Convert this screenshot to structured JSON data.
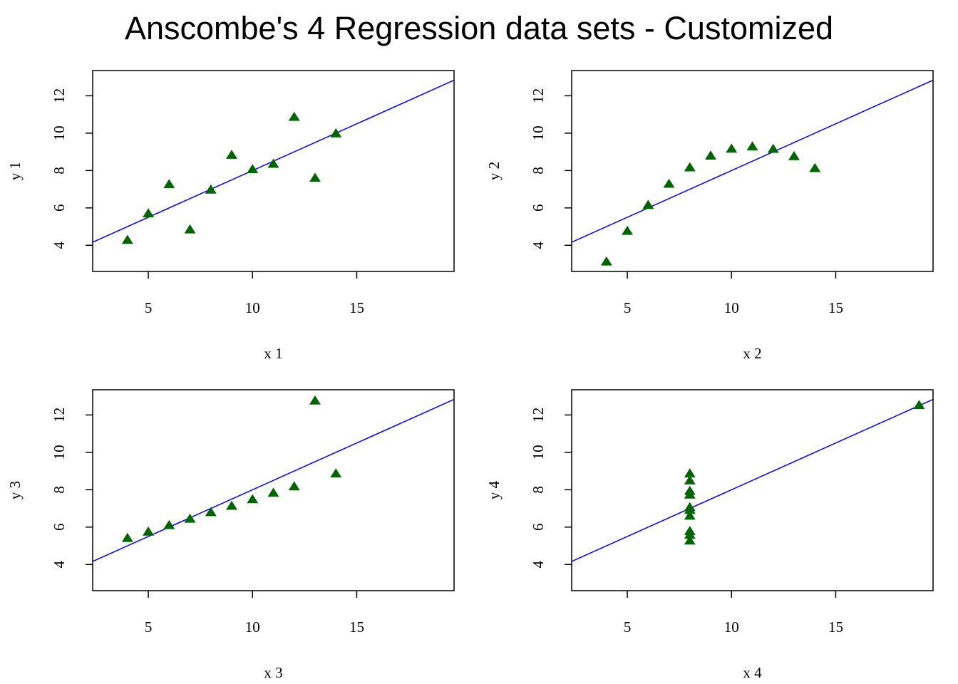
{
  "title": "Anscombe's 4 Regression data sets - Customized",
  "colors": {
    "points": "#006400",
    "fit_line": "#0000ff",
    "axes": "#000000"
  },
  "chart_data": [
    {
      "type": "scatter",
      "xlabel": "x 1",
      "ylabel": "y 1",
      "xlim": [
        2.33,
        19.67
      ],
      "ylim": [
        2.6,
        13.35
      ],
      "xticks": [
        5,
        10,
        15
      ],
      "yticks": [
        4,
        6,
        8,
        10,
        12
      ],
      "marker": "triangle",
      "x": [
        10,
        8,
        13,
        9,
        11,
        14,
        6,
        4,
        12,
        7,
        5
      ],
      "y": [
        8.04,
        6.95,
        7.58,
        8.81,
        8.33,
        9.96,
        7.24,
        4.26,
        10.84,
        4.82,
        5.68
      ],
      "fit": {
        "intercept": 3.0,
        "slope": 0.5
      }
    },
    {
      "type": "scatter",
      "xlabel": "x 2",
      "ylabel": "y 2",
      "xlim": [
        2.33,
        19.67
      ],
      "ylim": [
        2.6,
        13.35
      ],
      "xticks": [
        5,
        10,
        15
      ],
      "yticks": [
        4,
        6,
        8,
        10,
        12
      ],
      "marker": "triangle",
      "x": [
        10,
        8,
        13,
        9,
        11,
        14,
        6,
        4,
        12,
        7,
        5
      ],
      "y": [
        9.14,
        8.14,
        8.74,
        8.77,
        9.26,
        8.1,
        6.13,
        3.1,
        9.13,
        7.26,
        4.74
      ],
      "fit": {
        "intercept": 3.0,
        "slope": 0.5
      }
    },
    {
      "type": "scatter",
      "xlabel": "x 3",
      "ylabel": "y 3",
      "xlim": [
        2.33,
        19.67
      ],
      "ylim": [
        2.6,
        13.35
      ],
      "xticks": [
        5,
        10,
        15
      ],
      "yticks": [
        4,
        6,
        8,
        10,
        12
      ],
      "marker": "triangle",
      "x": [
        10,
        8,
        13,
        9,
        11,
        14,
        6,
        4,
        12,
        7,
        5
      ],
      "y": [
        7.46,
        6.77,
        12.74,
        7.11,
        7.81,
        8.84,
        6.08,
        5.39,
        8.15,
        6.42,
        5.73
      ],
      "fit": {
        "intercept": 3.0,
        "slope": 0.5
      }
    },
    {
      "type": "scatter",
      "xlabel": "x 4",
      "ylabel": "y 4",
      "xlim": [
        2.33,
        19.67
      ],
      "ylim": [
        2.6,
        13.35
      ],
      "xticks": [
        5,
        10,
        15
      ],
      "yticks": [
        4,
        6,
        8,
        10,
        12
      ],
      "marker": "triangle",
      "x": [
        8,
        8,
        8,
        8,
        8,
        8,
        8,
        19,
        8,
        8,
        8
      ],
      "y": [
        6.58,
        5.76,
        7.71,
        8.84,
        8.47,
        7.04,
        5.25,
        12.5,
        5.56,
        7.91,
        6.89
      ],
      "fit": {
        "intercept": 3.0,
        "slope": 0.5
      }
    }
  ]
}
